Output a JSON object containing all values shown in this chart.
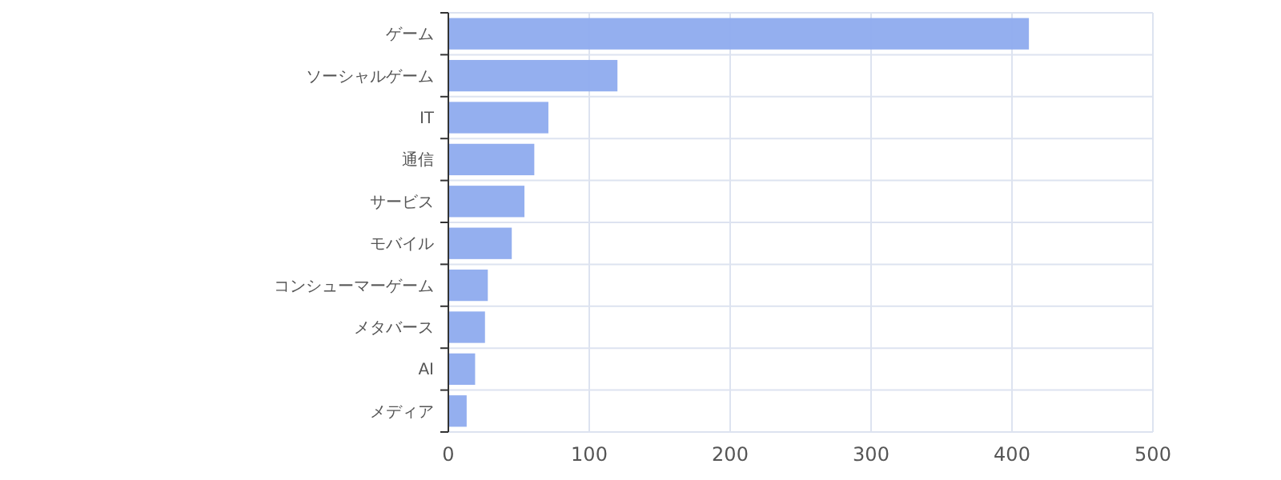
{
  "chart_data": {
    "type": "bar",
    "orientation": "horizontal",
    "categories": [
      "ゲーム",
      "ソーシャルゲーム",
      "IT",
      "通信",
      "サービス",
      "モバイル",
      "コンシューマーゲーム",
      "メタバース",
      "AI",
      "メディア"
    ],
    "values": [
      412,
      120,
      71,
      61,
      54,
      45,
      28,
      26,
      19,
      13
    ],
    "color": "#8eabee",
    "xlim": [
      0,
      500
    ],
    "xticks": [
      0,
      100,
      200,
      300,
      400,
      500
    ],
    "grid": true
  }
}
